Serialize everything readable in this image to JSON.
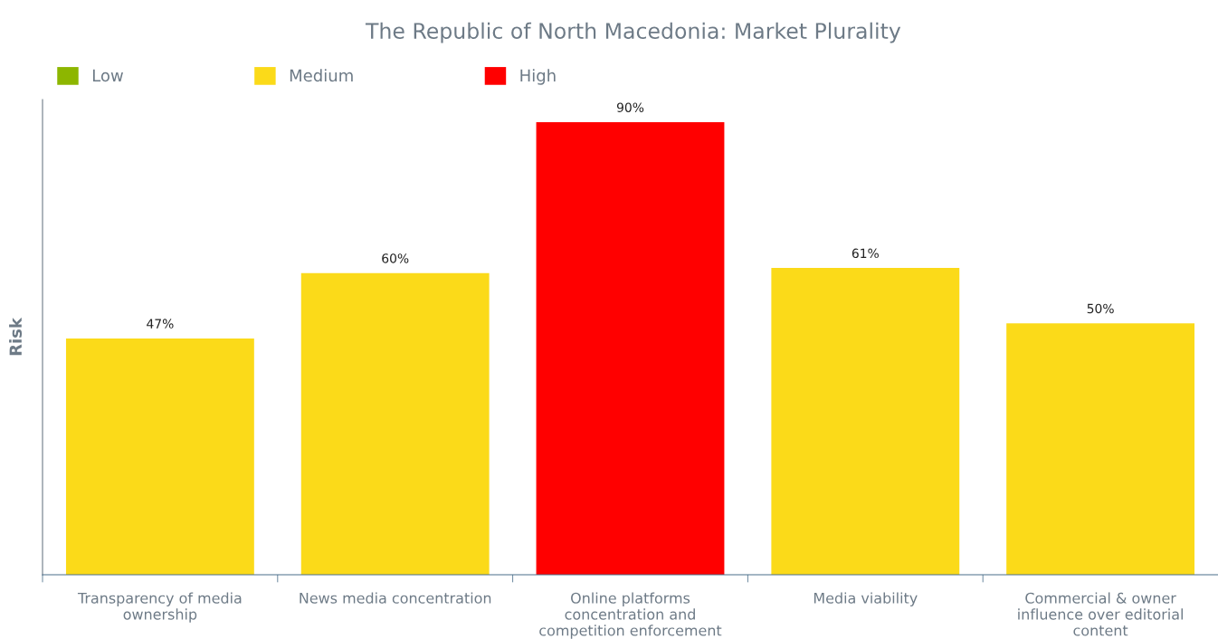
{
  "chart_data": {
    "type": "bar",
    "title": "The Republic of North Macedonia: Market Plurality",
    "ylabel": "Risk",
    "categories": [
      "Transparency of media\nownership",
      "News media concentration",
      "Online platforms\nconcentration and\ncompetition enforcement",
      "Media viability",
      "Commercial & owner\ninfluence over editorial\ncontent"
    ],
    "series": [
      {
        "name": "Low",
        "color": "#8db600",
        "values": [
          null,
          null,
          null,
          null,
          null
        ]
      },
      {
        "name": "Medium",
        "color": "#fbda19",
        "values": [
          47,
          60,
          null,
          61,
          50
        ],
        "value_labels": [
          "47%",
          "60%",
          null,
          "61%",
          "50%"
        ]
      },
      {
        "name": "High",
        "color": "#ff0000",
        "values": [
          null,
          null,
          90,
          null,
          null
        ],
        "value_labels": [
          null,
          null,
          "90%",
          null,
          null
        ]
      }
    ],
    "stacked": true,
    "tick_labels": "x",
    "legend": "top left"
  }
}
